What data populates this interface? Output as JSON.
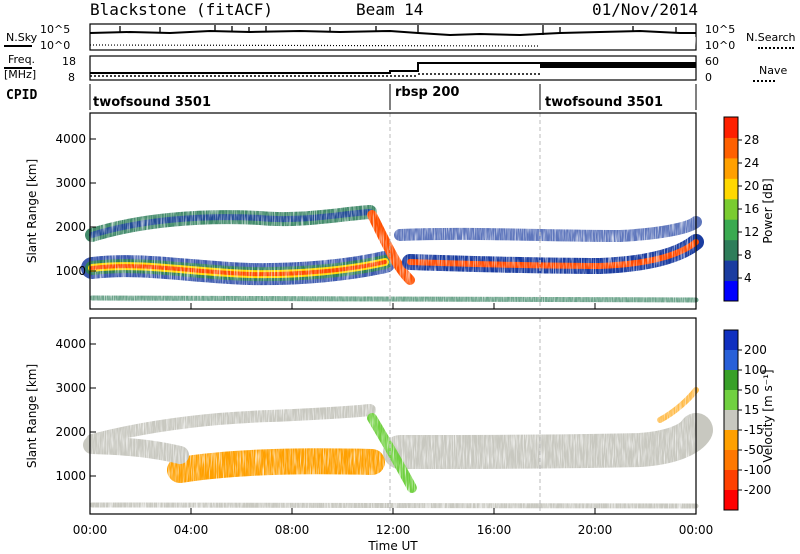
{
  "header": {
    "station": "Blackstone (fitACF)",
    "beam": "Beam 14",
    "date": "01/Nov/2014"
  },
  "top_panel": {
    "left_label": "N.Sky",
    "left_ticks": [
      "10^5",
      "10^0"
    ],
    "right_ticks": [
      "10^5",
      "10^0"
    ],
    "right_label": "N.Search"
  },
  "freq_panel": {
    "left_label_1": "Freq.",
    "left_label_2": "[MHz]",
    "left_ticks": [
      "18",
      "8"
    ],
    "right_ticks": [
      "60",
      "0"
    ],
    "right_label": "Nave"
  },
  "cpid": {
    "label": "CPID",
    "segments": [
      {
        "name": "twofsound 3501",
        "start_hour": 0
      },
      {
        "name": "rbsp 200",
        "start_hour": 12
      },
      {
        "name": "twofsound 3501",
        "start_hour": 18
      }
    ]
  },
  "colors": {
    "dashed_divider": "#bbbbbb"
  },
  "chart_data": [
    {
      "type": "heatmap",
      "title": "",
      "xlabel": "",
      "ylabel": "Slant Range [km]",
      "xlim": [
        0,
        24
      ],
      "ylim": [
        180,
        4600
      ],
      "y_ticks": [
        "1000",
        "2000",
        "3000",
        "4000"
      ],
      "colorbar_label": "Power [dB]",
      "colorbar_ticks": [
        "4",
        "8",
        "12",
        "16",
        "20",
        "24",
        "28"
      ],
      "colorbar_colors": [
        "#0000ff",
        "#1a3ca0",
        "#2e7d5a",
        "#3aaa50",
        "#7acc30",
        "#ffd800",
        "#ffa000",
        "#ff6000",
        "#ff2000"
      ],
      "dominant_bands": [
        {
          "feature": "main echo band (strongest, red core)",
          "start_hour": 0,
          "end_hour": 11.5,
          "range_km": [
            950,
            1250
          ]
        },
        {
          "feature": "main echo band",
          "start_hour": 13,
          "end_hour": 24,
          "range_km": [
            1000,
            1200
          ]
        },
        {
          "feature": "upper band",
          "start_hour": 0,
          "end_hour": 12,
          "range_km": [
            1700,
            2100
          ]
        }
      ]
    },
    {
      "type": "heatmap",
      "title": "",
      "xlabel": "Time UT",
      "ylabel": "Slant Range [km]",
      "xlim": [
        0,
        24
      ],
      "ylim": [
        180,
        4600
      ],
      "x_ticks": [
        "00:00",
        "04:00",
        "08:00",
        "12:00",
        "16:00",
        "20:00",
        "00:00"
      ],
      "y_ticks": [
        "1000",
        "2000",
        "3000",
        "4000"
      ],
      "colorbar_label": "Velocity [m s⁻¹]",
      "colorbar_ticks": [
        "200",
        "100",
        "50",
        "15",
        "-15",
        "-50",
        "-100",
        "-200"
      ],
      "colorbar_colors": [
        "#1030c0",
        "#2860d8",
        "#38a028",
        "#70d040",
        "#c8c8c0",
        "#ffa000",
        "#ff7800",
        "#ff4000",
        "#ff0000"
      ],
      "dominant_bands": [
        {
          "feature": "negative velocity (orange) region",
          "start_hour": 2.5,
          "end_hour": 11,
          "range_km": [
            750,
            1400
          ]
        },
        {
          "feature": "low velocity (grey) band",
          "start_hour": 12,
          "end_hour": 24,
          "range_km": [
            1000,
            1900
          ]
        },
        {
          "feature": "positive velocity (green) streak",
          "start_hour": 11.5,
          "end_hour": 13,
          "range_km": [
            800,
            2200
          ]
        }
      ]
    }
  ]
}
